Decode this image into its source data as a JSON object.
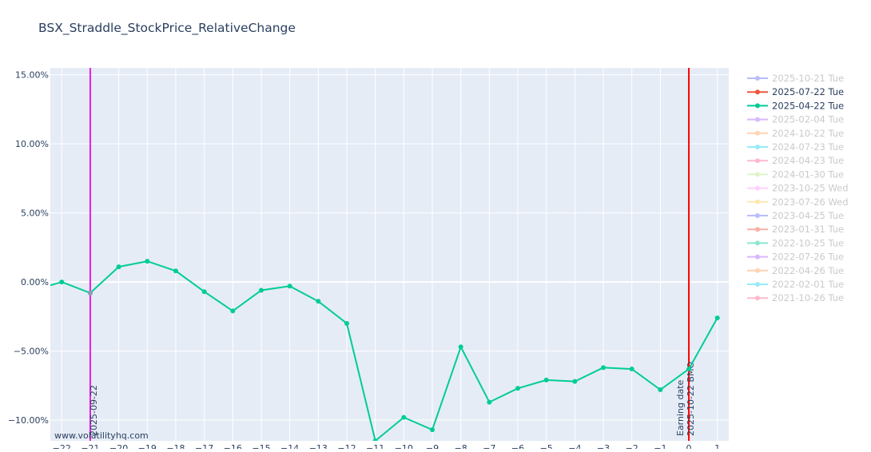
{
  "chart_data": {
    "type": "line",
    "title": "BSX_Straddle_StockPrice_RelativeChange",
    "xlabel": "",
    "ylabel": "",
    "xlim": [
      -22.4,
      1.4
    ],
    "ylim": [
      -0.115,
      0.155
    ],
    "x_ticks": [
      -22,
      -21,
      -20,
      -19,
      -18,
      -17,
      -16,
      -15,
      -14,
      -13,
      -12,
      -11,
      -10,
      -9,
      -8,
      -7,
      -6,
      -5,
      -4,
      -3,
      -2,
      -1,
      0,
      1
    ],
    "x_tick_labels": [
      "−22",
      "−21",
      "−20",
      "−19",
      "−18",
      "−17",
      "−16",
      "−15",
      "−14",
      "−13",
      "−12",
      "−11",
      "−10",
      "−9",
      "−8",
      "−7",
      "−6",
      "−5",
      "−4",
      "−3",
      "−2",
      "−1",
      "0",
      "1"
    ],
    "y_ticks": [
      -0.1,
      -0.05,
      0.0,
      0.05,
      0.1,
      0.15
    ],
    "y_tick_labels": [
      "−10.00%",
      "−5.00%",
      "0.00%",
      "5.00%",
      "10.00%",
      "15.00%"
    ],
    "grid": true,
    "legend_position": "right",
    "series": [
      {
        "name": "2025-10-21 Tue",
        "color": "#636efa",
        "active": false,
        "x": [],
        "y": []
      },
      {
        "name": "2025-07-22 Tue",
        "color": "#EF553B",
        "active": true,
        "x": [
          -21
        ],
        "y": [
          -0.008
        ]
      },
      {
        "name": "2025-04-22 Tue",
        "color": "#00cc96",
        "active": true,
        "x": [
          -22.5,
          -22,
          -21,
          -20,
          -19,
          -18,
          -17,
          -16,
          -15,
          -14,
          -13,
          -12,
          -11,
          -10,
          -9,
          -8,
          -7,
          -6,
          -5,
          -4,
          -3,
          -2,
          -1,
          0,
          1
        ],
        "y": [
          -0.003,
          0.0,
          -0.008,
          0.011,
          0.015,
          0.008,
          -0.007,
          -0.021,
          -0.006,
          -0.003,
          -0.014,
          -0.03,
          -0.115,
          -0.098,
          -0.107,
          -0.047,
          -0.087,
          -0.077,
          -0.071,
          -0.072,
          -0.062,
          -0.063,
          -0.078,
          -0.063,
          -0.026
        ]
      },
      {
        "name": "2025-02-04 Tue",
        "color": "#ab63fa",
        "active": false,
        "x": [],
        "y": []
      },
      {
        "name": "2024-10-22 Tue",
        "color": "#FFA15A",
        "active": false,
        "x": [],
        "y": []
      },
      {
        "name": "2024-07-23 Tue",
        "color": "#19d3f3",
        "active": false,
        "x": [],
        "y": []
      },
      {
        "name": "2024-04-23 Tue",
        "color": "#FF6692",
        "active": false,
        "x": [],
        "y": []
      },
      {
        "name": "2024-01-30 Tue",
        "color": "#B6E880",
        "active": false,
        "x": [],
        "y": []
      },
      {
        "name": "2023-10-25 Wed",
        "color": "#FF97FF",
        "active": false,
        "x": [],
        "y": []
      },
      {
        "name": "2023-07-26 Wed",
        "color": "#FECB52",
        "active": false,
        "x": [],
        "y": []
      },
      {
        "name": "2023-04-25 Tue",
        "color": "#636efa",
        "active": false,
        "x": [],
        "y": []
      },
      {
        "name": "2023-01-31 Tue",
        "color": "#EF553B",
        "active": false,
        "x": [],
        "y": []
      },
      {
        "name": "2022-10-25 Tue",
        "color": "#00cc96",
        "active": false,
        "x": [],
        "y": []
      },
      {
        "name": "2022-07-26 Tue",
        "color": "#ab63fa",
        "active": false,
        "x": [],
        "y": []
      },
      {
        "name": "2022-04-26 Tue",
        "color": "#FFA15A",
        "active": false,
        "x": [],
        "y": []
      },
      {
        "name": "2022-02-01 Tue",
        "color": "#19d3f3",
        "active": false,
        "x": [],
        "y": []
      },
      {
        "name": "2021-10-26 Tue",
        "color": "#FF6692",
        "active": false,
        "x": [],
        "y": []
      }
    ],
    "vlines": [
      {
        "x": -21,
        "color": "#e31ee3",
        "labels": [
          "2025-09-22"
        ]
      },
      {
        "x": 0,
        "color": "#ff0000",
        "labels": [
          "Earning date",
          "2025-10-22 BMO"
        ]
      }
    ],
    "watermark": "www.volatilityhq.com"
  },
  "colors": {
    "plot_bg": "#e5ecf6",
    "grid": "#ffffff",
    "text": "#2a3f5f",
    "legend_active_text": "#2a3f5f",
    "legend_inactive_text": "#b3b3b3"
  }
}
